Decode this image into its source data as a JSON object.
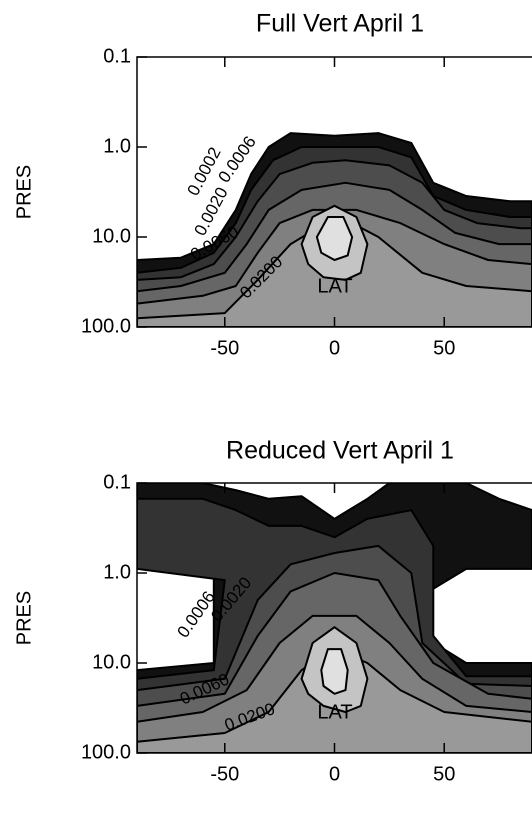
{
  "chart_data": [
    {
      "type": "contour",
      "title": "Full Vert April 1",
      "xlabel": "LAT",
      "ylabel": "PRES",
      "xlim": [
        -90,
        90
      ],
      "ylim": [
        100,
        0.1
      ],
      "log_y": true,
      "xticks": [
        -50,
        0,
        50
      ],
      "yticks": [
        0.1,
        {
          "value": 1,
          "label": "1.0"
        },
        {
          "value": 10,
          "label": "10.0"
        },
        {
          "value": 100,
          "label": "100.0"
        }
      ],
      "contours": [
        {
          "level": 0.0001,
          "color": "#111111",
          "lat": [
            -90,
            -70,
            -55,
            -45,
            -38,
            -30,
            -20,
            0,
            20,
            35,
            45,
            60,
            80,
            90,
            90,
            -90
          ],
          "pres": [
            18,
            17,
            12,
            5,
            2,
            1.0,
            0.7,
            0.75,
            0.7,
            0.9,
            2.5,
            3.5,
            4,
            4,
            100,
            100
          ]
        },
        {
          "level": 0.0002,
          "label": "0.0002",
          "color": "#333333",
          "lat": [
            -90,
            -70,
            -55,
            -45,
            -38,
            -28,
            -15,
            0,
            20,
            35,
            45,
            60,
            80,
            90,
            90,
            -90
          ],
          "pres": [
            25,
            22,
            15,
            7,
            3,
            1.4,
            1.0,
            1.0,
            1.0,
            1.3,
            3.5,
            5,
            6,
            6,
            100,
            100
          ]
        },
        {
          "level": 0.0006,
          "label": "0.0006",
          "color": "#4d4d4d",
          "lat": [
            -90,
            -70,
            -55,
            -45,
            -35,
            -25,
            -10,
            5,
            25,
            40,
            50,
            65,
            85,
            90,
            90,
            -90
          ],
          "pres": [
            30,
            28,
            20,
            10,
            4,
            2,
            1.5,
            1.4,
            1.6,
            2.5,
            5,
            7,
            8,
            8,
            100,
            100
          ]
        },
        {
          "level": 0.002,
          "label": "0.0020",
          "color": "#666666",
          "lat": [
            -90,
            -70,
            -50,
            -40,
            -30,
            -15,
            5,
            25,
            40,
            55,
            75,
            90,
            90,
            -90
          ],
          "pres": [
            40,
            35,
            25,
            12,
            5,
            3,
            2.5,
            3,
            5,
            9,
            12,
            12,
            100,
            100
          ]
        },
        {
          "level": 0.006,
          "label": "0.0060",
          "color": "#808080",
          "lat": [
            -90,
            -60,
            -45,
            -35,
            -25,
            -10,
            10,
            30,
            50,
            70,
            90,
            90,
            -90
          ],
          "pres": [
            55,
            45,
            35,
            15,
            7,
            5,
            5,
            7,
            12,
            18,
            20,
            100,
            100
          ]
        },
        {
          "level": 0.02,
          "label": "0.0200",
          "color": "#999999",
          "lat": [
            -90,
            -50,
            -35,
            -20,
            -8,
            8,
            20,
            40,
            60,
            90,
            90,
            -90
          ],
          "pres": [
            80,
            70,
            30,
            12,
            8,
            7,
            10,
            25,
            35,
            40,
            100,
            100
          ]
        },
        {
          "level": 0.06,
          "color": "#c4c4c4",
          "lat": [
            -15,
            -10,
            0,
            10,
            15,
            12,
            5,
            -5,
            -12
          ],
          "pres": [
            12,
            6,
            4.5,
            6,
            12,
            25,
            30,
            28,
            20
          ]
        },
        {
          "level": 0.2,
          "color": "#e0e0e0",
          "lat": [
            -8,
            -3,
            4,
            8,
            6,
            0,
            -6
          ],
          "pres": [
            10,
            6,
            6,
            10,
            16,
            18,
            15
          ]
        }
      ]
    },
    {
      "type": "contour",
      "title": "Reduced Vert April 1",
      "xlabel": "LAT",
      "ylabel": "PRES",
      "xlim": [
        -90,
        90
      ],
      "ylim": [
        100,
        0.1
      ],
      "log_y": true,
      "xticks": [
        -50,
        0,
        50
      ],
      "yticks": [
        0.1,
        {
          "value": 1,
          "label": "1.0"
        },
        {
          "value": 10,
          "label": "10.0"
        },
        {
          "value": 100,
          "label": "100.0"
        }
      ],
      "contours": [
        {
          "level": 0.0001,
          "color": "#111111",
          "lat": [
            -90,
            -60,
            -45,
            -30,
            -15,
            0,
            15,
            25,
            40,
            60,
            75,
            90,
            90,
            60,
            45,
            40,
            60,
            90,
            90,
            -90,
            -90,
            -55,
            -55,
            -90
          ],
          "pres": [
            0.1,
            0.1,
            0.12,
            0.15,
            0.14,
            0.25,
            0.15,
            0.1,
            0.1,
            0.1,
            0.15,
            0.2,
            0.9,
            0.9,
            1.5,
            5,
            10,
            10,
            100,
            100,
            12,
            10,
            1,
            0.7
          ]
        },
        {
          "level": 0.0002,
          "color": "#333333",
          "lat": [
            -90,
            -60,
            -45,
            -30,
            -15,
            0,
            15,
            35,
            45,
            45,
            60,
            90,
            90,
            -90,
            -90,
            -55,
            -50,
            -90
          ],
          "pres": [
            0.15,
            0.15,
            0.2,
            0.3,
            0.3,
            0.4,
            0.25,
            0.2,
            0.5,
            5,
            14,
            14,
            100,
            100,
            15,
            12,
            1.2,
            0.9
          ]
        },
        {
          "level": 0.0006,
          "label": "0.0006",
          "color": "#4d4d4d",
          "lat": [
            -90,
            -50,
            -35,
            -20,
            0,
            20,
            35,
            40,
            60,
            90,
            90,
            -90
          ],
          "pres": [
            20,
            15,
            2,
            0.8,
            0.6,
            0.5,
            1,
            6,
            17,
            18,
            100,
            100
          ]
        },
        {
          "level": 0.002,
          "label": "0.0020",
          "color": "#666666",
          "lat": [
            -90,
            -50,
            -35,
            -20,
            0,
            20,
            30,
            45,
            70,
            90,
            90,
            -90
          ],
          "pres": [
            30,
            22,
            5,
            1.6,
            1.0,
            1.2,
            3,
            10,
            22,
            25,
            100,
            100
          ]
        },
        {
          "level": 0.006,
          "label": "0.0060",
          "color": "#808080",
          "lat": [
            -90,
            -60,
            -40,
            -25,
            -10,
            10,
            25,
            40,
            60,
            90,
            90,
            -90
          ],
          "pres": [
            45,
            35,
            20,
            6,
            3,
            3,
            6,
            15,
            30,
            35,
            100,
            100
          ]
        },
        {
          "level": 0.02,
          "label": "0.0200",
          "color": "#999999",
          "lat": [
            -90,
            -50,
            -30,
            -15,
            0,
            15,
            30,
            50,
            90,
            90,
            -90
          ],
          "pres": [
            75,
            60,
            35,
            12,
            7,
            10,
            20,
            35,
            45,
            100,
            100
          ]
        },
        {
          "level": 0.06,
          "color": "#c4c4c4",
          "lat": [
            -15,
            -10,
            0,
            10,
            15,
            12,
            5,
            -5,
            -12
          ],
          "pres": [
            15,
            6,
            4,
            6,
            15,
            30,
            35,
            30,
            22
          ]
        },
        {
          "level": 0.2,
          "color": "#e0e0e0",
          "lat": [
            -6,
            -3,
            3,
            6,
            5,
            0,
            -5
          ],
          "pres": [
            12,
            7,
            7,
            12,
            20,
            22,
            18
          ]
        }
      ]
    }
  ]
}
